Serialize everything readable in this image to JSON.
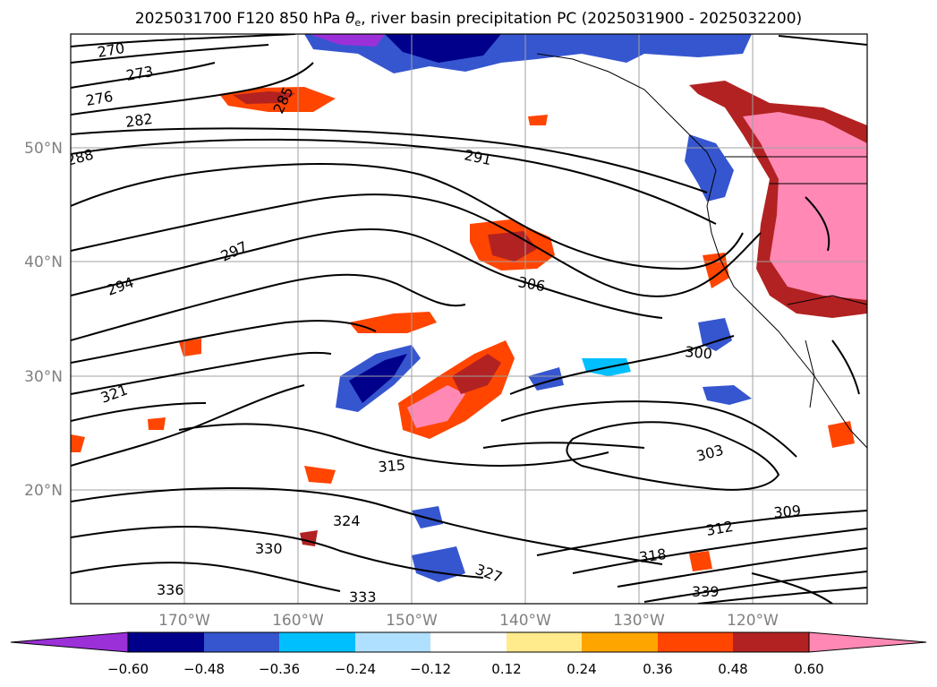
{
  "title": {
    "before_theta": "2025031700 F120 850 hPa ",
    "theta": "θ",
    "theta_sub": "e",
    "after_theta": ", river basin precipitation PC (2025031900 - 2025032200)"
  },
  "map": {
    "lat_ticks": [
      "50°N",
      "40°N",
      "30°N",
      "20°N"
    ],
    "lon_ticks": [
      "170°W",
      "160°W",
      "150°W",
      "140°W",
      "130°W",
      "120°W"
    ],
    "contour_labels": [
      "270",
      "273",
      "276",
      "282",
      "285",
      "288",
      "291",
      "294",
      "297",
      "300",
      "303",
      "306",
      "309",
      "312",
      "315",
      "318",
      "321",
      "324",
      "327",
      "330",
      "333",
      "336",
      "339"
    ],
    "colors": {
      "land_line": "#000000",
      "grid": "#a0a0a0",
      "tick_label": "#808080"
    }
  },
  "colorbar": {
    "tick_labels": [
      "−0.60",
      "−0.48",
      "−0.36",
      "−0.24",
      "−0.12",
      "0.12",
      "0.24",
      "0.36",
      "0.48",
      "0.60"
    ],
    "colors": [
      "#9b30d9",
      "#00008b",
      "#3656cf",
      "#00bfff",
      "#b0e0ff",
      "#ffffff",
      "#ffeb8c",
      "#ffa500",
      "#ff4500",
      "#b22222",
      "#ff89b4"
    ]
  }
}
